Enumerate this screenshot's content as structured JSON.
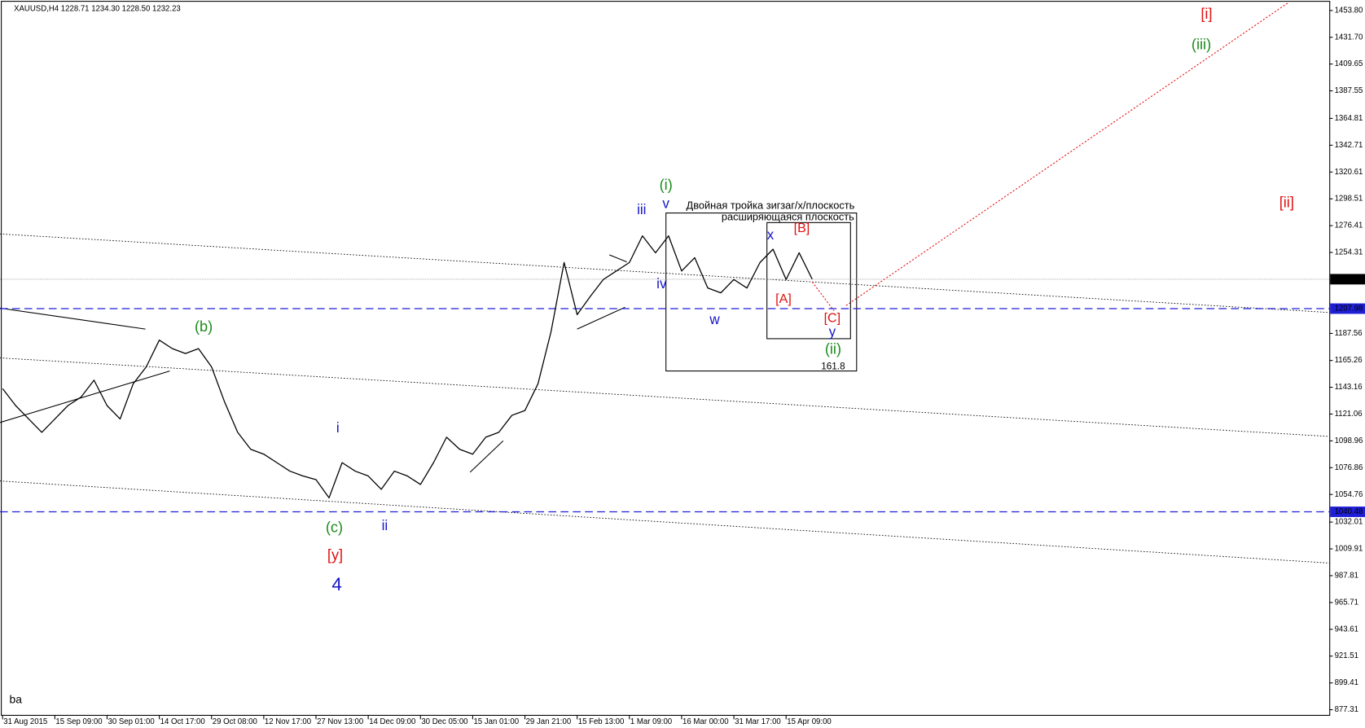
{
  "chart_data": {
    "type": "line",
    "title": "XAUUSD,H4  1228.71 1234.30 1228.50 1232.23",
    "categories": [
      "31 Aug 2015",
      null,
      null,
      null,
      "15 Sep 09:00",
      null,
      null,
      null,
      "30 Sep 01:00",
      null,
      null,
      null,
      "14 Oct 17:00",
      null,
      null,
      null,
      "29 Oct 08:00",
      null,
      null,
      null,
      "12 Nov 17:00",
      null,
      null,
      null,
      "27 Nov 13:00",
      null,
      null,
      null,
      "14 Dec 09:00",
      null,
      null,
      null,
      "30 Dec 05:00",
      null,
      null,
      null,
      "15 Jan 01:00",
      null,
      null,
      null,
      "29 Jan 21:00",
      null,
      null,
      null,
      "15 Feb 13:00",
      null,
      null,
      null,
      "1 Mar 09:00",
      null,
      null,
      null,
      "16 Mar 00:00",
      null,
      null,
      null,
      "31 Mar 17:00",
      null,
      null,
      null,
      "15 Apr 09:00",
      null,
      null,
      null
    ],
    "values": [
      1142,
      1128,
      1117,
      1106,
      1117,
      1128,
      1135,
      1149,
      1128,
      1117,
      1146,
      1160,
      1182,
      1175,
      1171,
      1175,
      1160,
      1131,
      1106,
      1092,
      1088,
      1081,
      1074,
      1070,
      1067,
      1052,
      1081,
      1074,
      1070,
      1059,
      1074,
      1070,
      1063,
      1081,
      1102,
      1092,
      1088,
      1102,
      1106,
      1120,
      1124,
      1146,
      1189,
      1246,
      1203,
      1218,
      1232,
      1239,
      1246,
      1268,
      1254,
      1268,
      1239,
      1250,
      1225,
      1221,
      1232,
      1225,
      1246,
      1257,
      1232,
      1254,
      1232.23,
      null
    ],
    "color": "#000000",
    "ylim": [
      872.3,
      1461.0
    ],
    "yticks": [
      {
        "value": 1453.8,
        "label": "1453.80"
      },
      {
        "value": 1431.7,
        "label": "1431.70"
      },
      1409.65,
      1387.55,
      1364.81,
      1342.71,
      1320.61,
      1298.51,
      1276.41,
      1254.31,
      1187.56,
      1165.26,
      1143.16,
      1121.06,
      1098.96,
      1076.86,
      1054.76,
      1032.01,
      1009.91,
      987.81,
      965.71,
      943.61,
      921.51,
      899.41,
      877.31
    ],
    "current_price": 1232.23,
    "hlines": [
      {
        "value": 1207.98,
        "color": "#1f1fd6"
      },
      {
        "value": 1040.48,
        "color": "#1f1fd6"
      }
    ],
    "annotations": [
      {
        "text": "(i)",
        "color": "#1a8c1a"
      },
      {
        "text": "v",
        "color": "#1414c8"
      },
      {
        "text": "iii",
        "color": "#1414c8"
      },
      {
        "text": "iv",
        "color": "#1414c8"
      },
      {
        "text": "w",
        "color": "#1414c8"
      },
      {
        "text": "x",
        "color": "#1414c8"
      },
      {
        "text": "y",
        "color": "#1414c8"
      },
      {
        "text": "[B]",
        "color": "#e01010"
      },
      {
        "text": "[A]",
        "color": "#e01010"
      },
      {
        "text": "[C]",
        "color": "#e01010"
      },
      {
        "text": "(ii)",
        "color": "#1a8c1a"
      },
      {
        "text": "161.8",
        "color": "#000000"
      },
      {
        "text": "Двойная тройка зигзаг/x/плоскость",
        "color": "#000000"
      },
      {
        "text": "расширяющаяся плоскость",
        "color": "#000000"
      },
      {
        "text": "(b)",
        "color": "#1a8c1a"
      },
      {
        "text": "i",
        "color": "#1414c8"
      },
      {
        "text": "ii",
        "color": "#1414c8"
      },
      {
        "text": "(c)",
        "color": "#1a8c1a"
      },
      {
        "text": "[y]",
        "color": "#e01010"
      },
      {
        "text": "4",
        "color": "#1414c8"
      },
      {
        "text": "[i]",
        "color": "#e01010"
      },
      {
        "text": "(iii)",
        "color": "#1a8c1a"
      },
      {
        "text": "[ii]",
        "color": "#e01010"
      },
      {
        "text": "ba",
        "color": "#000000"
      }
    ]
  }
}
